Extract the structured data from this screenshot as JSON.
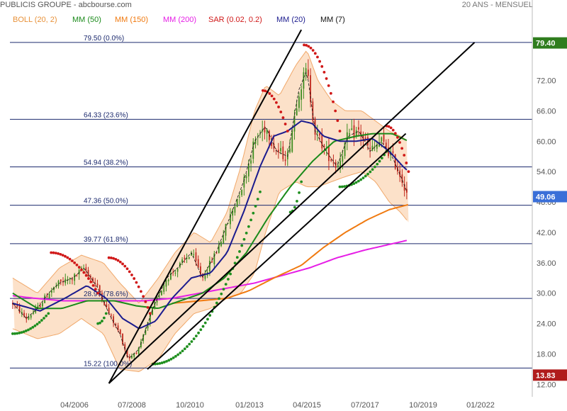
{
  "header": {
    "title": "PUBLICIS GROUPE - abcbourse.com",
    "period": "20 ANS - MENSUEL"
  },
  "legend": [
    {
      "label": "BOLL (20, 2)",
      "color": "#e8923a"
    },
    {
      "label": "MM (50)",
      "color": "#1a8a1a"
    },
    {
      "label": "MM (150)",
      "color": "#f07a10"
    },
    {
      "label": "MM (200)",
      "color": "#e61ee6"
    },
    {
      "label": "SAR (0.02, 0.2)",
      "color": "#d01818"
    },
    {
      "label": "MM (20)",
      "color": "#1b1b8e"
    },
    {
      "label": "MM (7)",
      "color": "#111111"
    }
  ],
  "colors": {
    "up_candle": "#3c8c1e",
    "down_candle": "#c0281e",
    "bollinger_fill": "#fbdcc0",
    "bollinger_line": "#f0a86a",
    "fib_line": "#1c2a6e",
    "badge_high": "#2f7d1e",
    "badge_last": "#3a6fd8",
    "badge_low": "#b01c1c"
  },
  "chart_data": {
    "type": "candlestick",
    "title": "PUBLICIS GROUPE",
    "y_ticks": [
      "12.00",
      "18.00",
      "24.00",
      "30.00",
      "36.00",
      "42.00",
      "48.00",
      "54.00",
      "60.00",
      "66.00",
      "72.00"
    ],
    "x_ticks": [
      "04/2006",
      "07/2008",
      "10/2010",
      "01/2013",
      "04/2015",
      "07/2017",
      "10/2019",
      "01/2022"
    ],
    "ylim": [
      11.5,
      82
    ],
    "x_range": [
      2004.6,
      2023.6
    ],
    "fibonacci": [
      {
        "level": "79.50",
        "pct": "(0.0%)",
        "value": 79.5
      },
      {
        "level": "64.33",
        "pct": "(23.6%)",
        "value": 64.33
      },
      {
        "level": "54.94",
        "pct": "(38.2%)",
        "value": 54.94
      },
      {
        "level": "47.36",
        "pct": "(50.0%)",
        "value": 47.36
      },
      {
        "level": "39.77",
        "pct": "(61.8%)",
        "value": 39.77
      },
      {
        "level": "28.97",
        "pct": "(78.6%)",
        "value": 28.97
      },
      {
        "level": "15.22",
        "pct": "(100.0%)",
        "value": 15.22
      }
    ],
    "badges": [
      {
        "label": "79.40",
        "value": 79.4,
        "kind": "high"
      },
      {
        "label": "49.06",
        "value": 49.06,
        "kind": "last"
      },
      {
        "label": "13.83",
        "value": 13.83,
        "kind": "low"
      }
    ],
    "price_anchors": [
      [
        2004.7,
        28
      ],
      [
        2005.2,
        25
      ],
      [
        2005.6,
        27
      ],
      [
        2006.0,
        30
      ],
      [
        2006.4,
        32
      ],
      [
        2006.9,
        33
      ],
      [
        2007.3,
        35
      ],
      [
        2007.8,
        31
      ],
      [
        2008.2,
        26
      ],
      [
        2008.6,
        22
      ],
      [
        2008.9,
        17
      ],
      [
        2009.3,
        19
      ],
      [
        2009.8,
        27
      ],
      [
        2010.3,
        33
      ],
      [
        2010.7,
        35
      ],
      [
        2011.2,
        38
      ],
      [
        2011.6,
        33
      ],
      [
        2012.1,
        38
      ],
      [
        2012.6,
        45
      ],
      [
        2013.1,
        52
      ],
      [
        2013.5,
        60
      ],
      [
        2013.9,
        63
      ],
      [
        2014.3,
        58
      ],
      [
        2014.7,
        57
      ],
      [
        2015.1,
        70
      ],
      [
        2015.4,
        74
      ],
      [
        2015.7,
        62
      ],
      [
        2016.1,
        58
      ],
      [
        2016.5,
        55
      ],
      [
        2016.9,
        61
      ],
      [
        2017.3,
        62
      ],
      [
        2017.7,
        58
      ],
      [
        2018.1,
        60
      ],
      [
        2018.5,
        57
      ],
      [
        2018.9,
        52
      ],
      [
        2019.1,
        49.06
      ]
    ],
    "ma20_anchors": [
      [
        2004.7,
        28
      ],
      [
        2005.7,
        26.5
      ],
      [
        2006.6,
        29
      ],
      [
        2007.4,
        31.5
      ],
      [
        2008.1,
        29
      ],
      [
        2008.7,
        25
      ],
      [
        2009.3,
        23
      ],
      [
        2009.9,
        24.5
      ],
      [
        2010.5,
        29
      ],
      [
        2011.2,
        33
      ],
      [
        2011.9,
        34
      ],
      [
        2012.5,
        38
      ],
      [
        2013.1,
        46
      ],
      [
        2013.7,
        55
      ],
      [
        2014.2,
        61
      ],
      [
        2014.7,
        62
      ],
      [
        2015.2,
        64
      ],
      [
        2015.6,
        63.5
      ],
      [
        2016.0,
        61
      ],
      [
        2016.6,
        60
      ],
      [
        2017.2,
        60
      ],
      [
        2017.8,
        60.5
      ],
      [
        2018.4,
        58
      ],
      [
        2018.9,
        55
      ],
      [
        2019.1,
        54
      ]
    ],
    "ma50_anchors": [
      [
        2004.7,
        30
      ],
      [
        2005.6,
        27
      ],
      [
        2006.5,
        27
      ],
      [
        2007.4,
        28.5
      ],
      [
        2008.4,
        28.5
      ],
      [
        2009.2,
        27.5
      ],
      [
        2010.0,
        27
      ],
      [
        2010.8,
        28.5
      ],
      [
        2011.6,
        30
      ],
      [
        2012.4,
        33
      ],
      [
        2013.2,
        38
      ],
      [
        2014.0,
        45
      ],
      [
        2014.8,
        51
      ],
      [
        2015.6,
        56
      ],
      [
        2016.4,
        60
      ],
      [
        2017.2,
        61
      ],
      [
        2017.8,
        61.5
      ],
      [
        2018.5,
        61.5
      ],
      [
        2019.1,
        60
      ]
    ],
    "ma150_anchors": [
      [
        2010.5,
        28
      ],
      [
        2011.5,
        28.5
      ],
      [
        2012.5,
        29
      ],
      [
        2013.3,
        30.5
      ],
      [
        2014.2,
        33
      ],
      [
        2015.2,
        35.5
      ],
      [
        2016.0,
        39
      ],
      [
        2016.8,
        42
      ],
      [
        2017.6,
        44.5
      ],
      [
        2018.4,
        46.5
      ],
      [
        2019.1,
        47.5
      ]
    ],
    "ma200_anchors": [
      [
        2004.7,
        29.5
      ],
      [
        2005.5,
        29
      ],
      [
        2006.5,
        28.5
      ],
      [
        2007.5,
        28.5
      ],
      [
        2008.5,
        28.5
      ],
      [
        2009.5,
        28.5
      ],
      [
        2010.5,
        29
      ],
      [
        2011.5,
        30
      ],
      [
        2012.5,
        31
      ],
      [
        2013.5,
        32
      ],
      [
        2014.5,
        33.5
      ],
      [
        2015.5,
        35
      ],
      [
        2016.5,
        37
      ],
      [
        2017.5,
        38.5
      ],
      [
        2018.3,
        39.5
      ],
      [
        2019.1,
        40.5
      ]
    ],
    "boll_upper_anchors": [
      [
        2004.7,
        33
      ],
      [
        2005.6,
        30
      ],
      [
        2006.4,
        35
      ],
      [
        2007.2,
        37.5
      ],
      [
        2008.0,
        36
      ],
      [
        2008.6,
        32
      ],
      [
        2009.3,
        28
      ],
      [
        2010.0,
        33
      ],
      [
        2010.6,
        38
      ],
      [
        2011.3,
        42
      ],
      [
        2011.9,
        40
      ],
      [
        2012.5,
        46
      ],
      [
        2013.0,
        55
      ],
      [
        2013.5,
        66
      ],
      [
        2013.9,
        71
      ],
      [
        2014.4,
        69
      ],
      [
        2015.0,
        75
      ],
      [
        2015.4,
        78
      ],
      [
        2015.8,
        72
      ],
      [
        2016.3,
        68
      ],
      [
        2016.8,
        66
      ],
      [
        2017.4,
        66
      ],
      [
        2017.9,
        64
      ],
      [
        2018.4,
        62
      ],
      [
        2018.8,
        61
      ],
      [
        2019.1,
        60
      ]
    ],
    "boll_lower_anchors": [
      [
        2004.7,
        23
      ],
      [
        2005.6,
        21
      ],
      [
        2006.4,
        22
      ],
      [
        2007.2,
        25
      ],
      [
        2008.0,
        22
      ],
      [
        2008.6,
        15
      ],
      [
        2009.3,
        14.5
      ],
      [
        2010.0,
        17
      ],
      [
        2010.6,
        22
      ],
      [
        2011.3,
        26
      ],
      [
        2011.9,
        27
      ],
      [
        2012.5,
        29
      ],
      [
        2013.0,
        30
      ],
      [
        2013.5,
        34
      ],
      [
        2013.9,
        42
      ],
      [
        2014.4,
        50
      ],
      [
        2015.0,
        52
      ],
      [
        2015.4,
        51
      ],
      [
        2015.8,
        51
      ],
      [
        2016.3,
        52
      ],
      [
        2016.8,
        53
      ],
      [
        2017.4,
        54
      ],
      [
        2017.9,
        52
      ],
      [
        2018.4,
        48
      ],
      [
        2018.8,
        46
      ],
      [
        2019.1,
        44
      ]
    ],
    "sar_segments": [
      {
        "trend": "up",
        "from": 2004.7,
        "to": 2006.0,
        "start": 22,
        "end": 26
      },
      {
        "trend": "down",
        "from": 2006.1,
        "to": 2007.8,
        "start": 38,
        "end": 30
      },
      {
        "trend": "up",
        "from": 2007.8,
        "to": 2008.1,
        "start": 24,
        "end": 26
      },
      {
        "trend": "down",
        "from": 2008.2,
        "to": 2009.7,
        "start": 37,
        "end": 26
      },
      {
        "trend": "up",
        "from": 2009.8,
        "to": 2013.7,
        "start": 16,
        "end": 50
      },
      {
        "trend": "down",
        "from": 2013.8,
        "to": 2014.7,
        "start": 70,
        "end": 62
      },
      {
        "trend": "up",
        "from": 2014.8,
        "to": 2015.2,
        "start": 46,
        "end": 52
      },
      {
        "trend": "down",
        "from": 2015.3,
        "to": 2016.6,
        "start": 79,
        "end": 62
      },
      {
        "trend": "up",
        "from": 2016.6,
        "to": 2018.3,
        "start": 51,
        "end": 58
      },
      {
        "trend": "down",
        "from": 2018.3,
        "to": 2019.1,
        "start": 63,
        "end": 54
      }
    ],
    "trendlines": [
      {
        "x1": 2008.2,
        "y1": 12.2,
        "x2": 2015.2,
        "y2": 82
      },
      {
        "x1": 2008.2,
        "y1": 12.2,
        "x2": 2021.5,
        "y2": 79.5
      },
      {
        "x1": 2009.6,
        "y1": 15,
        "x2": 2019.0,
        "y2": 61.5
      }
    ]
  }
}
